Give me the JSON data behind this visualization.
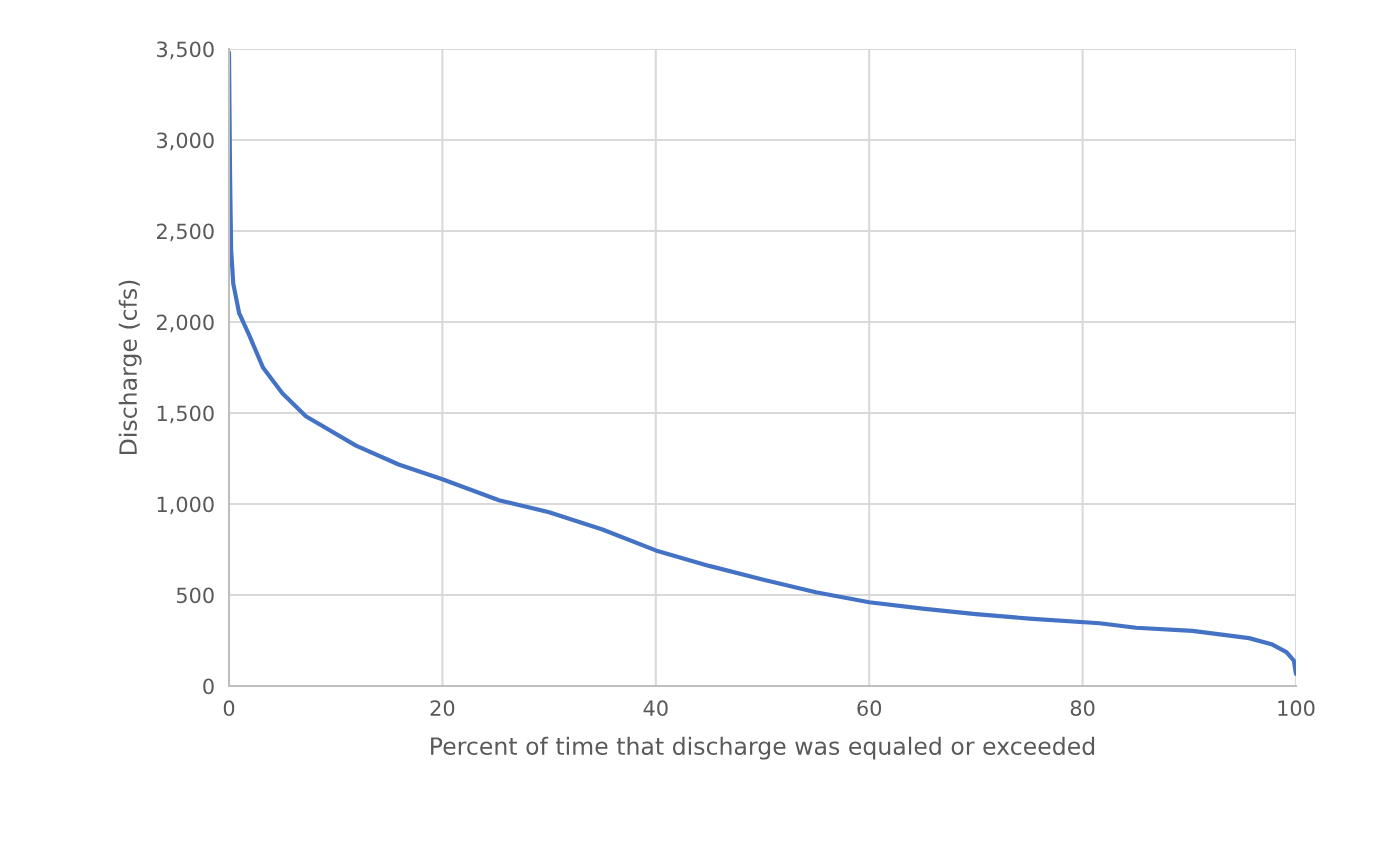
{
  "chart_data": {
    "type": "line",
    "xlabel": "Percent of time that discharge was equaled or exceeded",
    "ylabel": "Discharge (cfs)",
    "series": [
      {
        "color": "#4472c4",
        "x": [
          0,
          0.1,
          0.2,
          0.4,
          0.95,
          1.85,
          3.2,
          5.0,
          7.2,
          11.9,
          15.9,
          20,
          25.3,
          30,
          35,
          40,
          45,
          50,
          55,
          60,
          65,
          70,
          75,
          81.6,
          85,
          90.3,
          95.6,
          97.7,
          99.1,
          99.8,
          100
        ],
        "values": [
          3480,
          2800,
          2395,
          2211,
          2049,
          1933,
          1748,
          1609,
          1482,
          1321,
          1217,
          1136,
          1021,
          955,
          860,
          745,
          660,
          585,
          515,
          460,
          425,
          395,
          370,
          345,
          320,
          303,
          263,
          230,
          186,
          139,
          66
        ]
      }
    ],
    "xlim": [
      0,
      100
    ],
    "xticks": [
      0,
      20,
      40,
      60,
      80,
      100
    ],
    "ylim": [
      0,
      3500
    ],
    "yticks": [
      {
        "value": 0,
        "label": "0"
      },
      {
        "value": 500,
        "label": "500"
      },
      {
        "value": 1000,
        "label": "1,000"
      },
      {
        "value": 1500,
        "label": "1,500"
      },
      {
        "value": 2000,
        "label": "2,000"
      },
      {
        "value": 2500,
        "label": "2,500"
      },
      {
        "value": 3000,
        "label": "3,000"
      },
      {
        "value": 3500,
        "label": "3,500"
      }
    ],
    "grid": true
  }
}
